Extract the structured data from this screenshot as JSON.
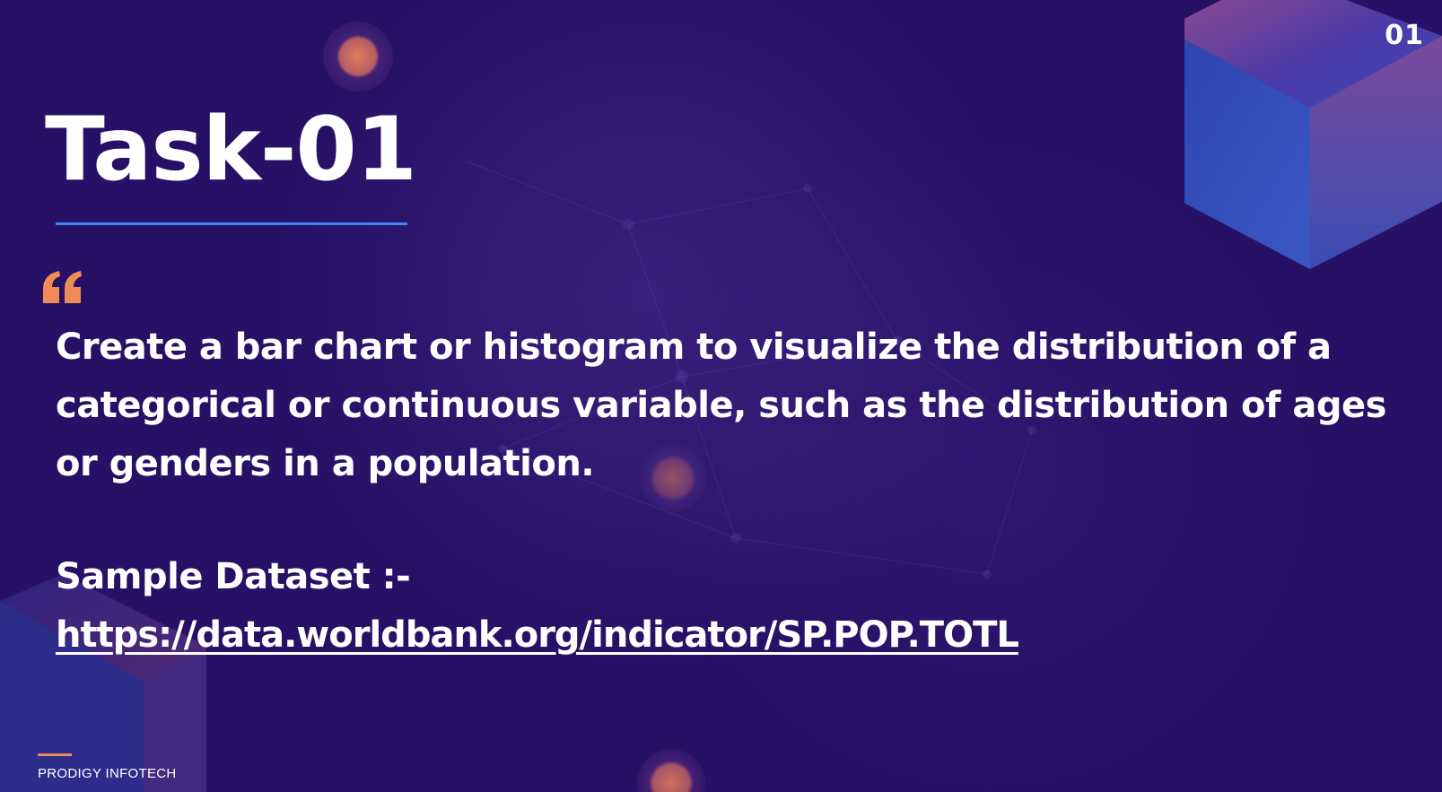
{
  "slide": {
    "page_number": "01",
    "title": "Task-01",
    "task_text": "Create a bar chart or histogram to visualize the distribution of a categorical or continuous variable, such as the distribution of ages or genders in a population.",
    "dataset_label": "Sample Dataset :-",
    "dataset_link": "https://data.worldbank.org/indicator/SP.POP.TOTL",
    "footer_brand": "PRODIGY INFOTECH",
    "quote_icon": "quote-mark-icon"
  },
  "colors": {
    "background": "#261166",
    "accent_blue": "#3d86f5",
    "accent_orange": "#ee8a5a",
    "cube_blue": "#3349b8",
    "text": "#ffffff"
  }
}
